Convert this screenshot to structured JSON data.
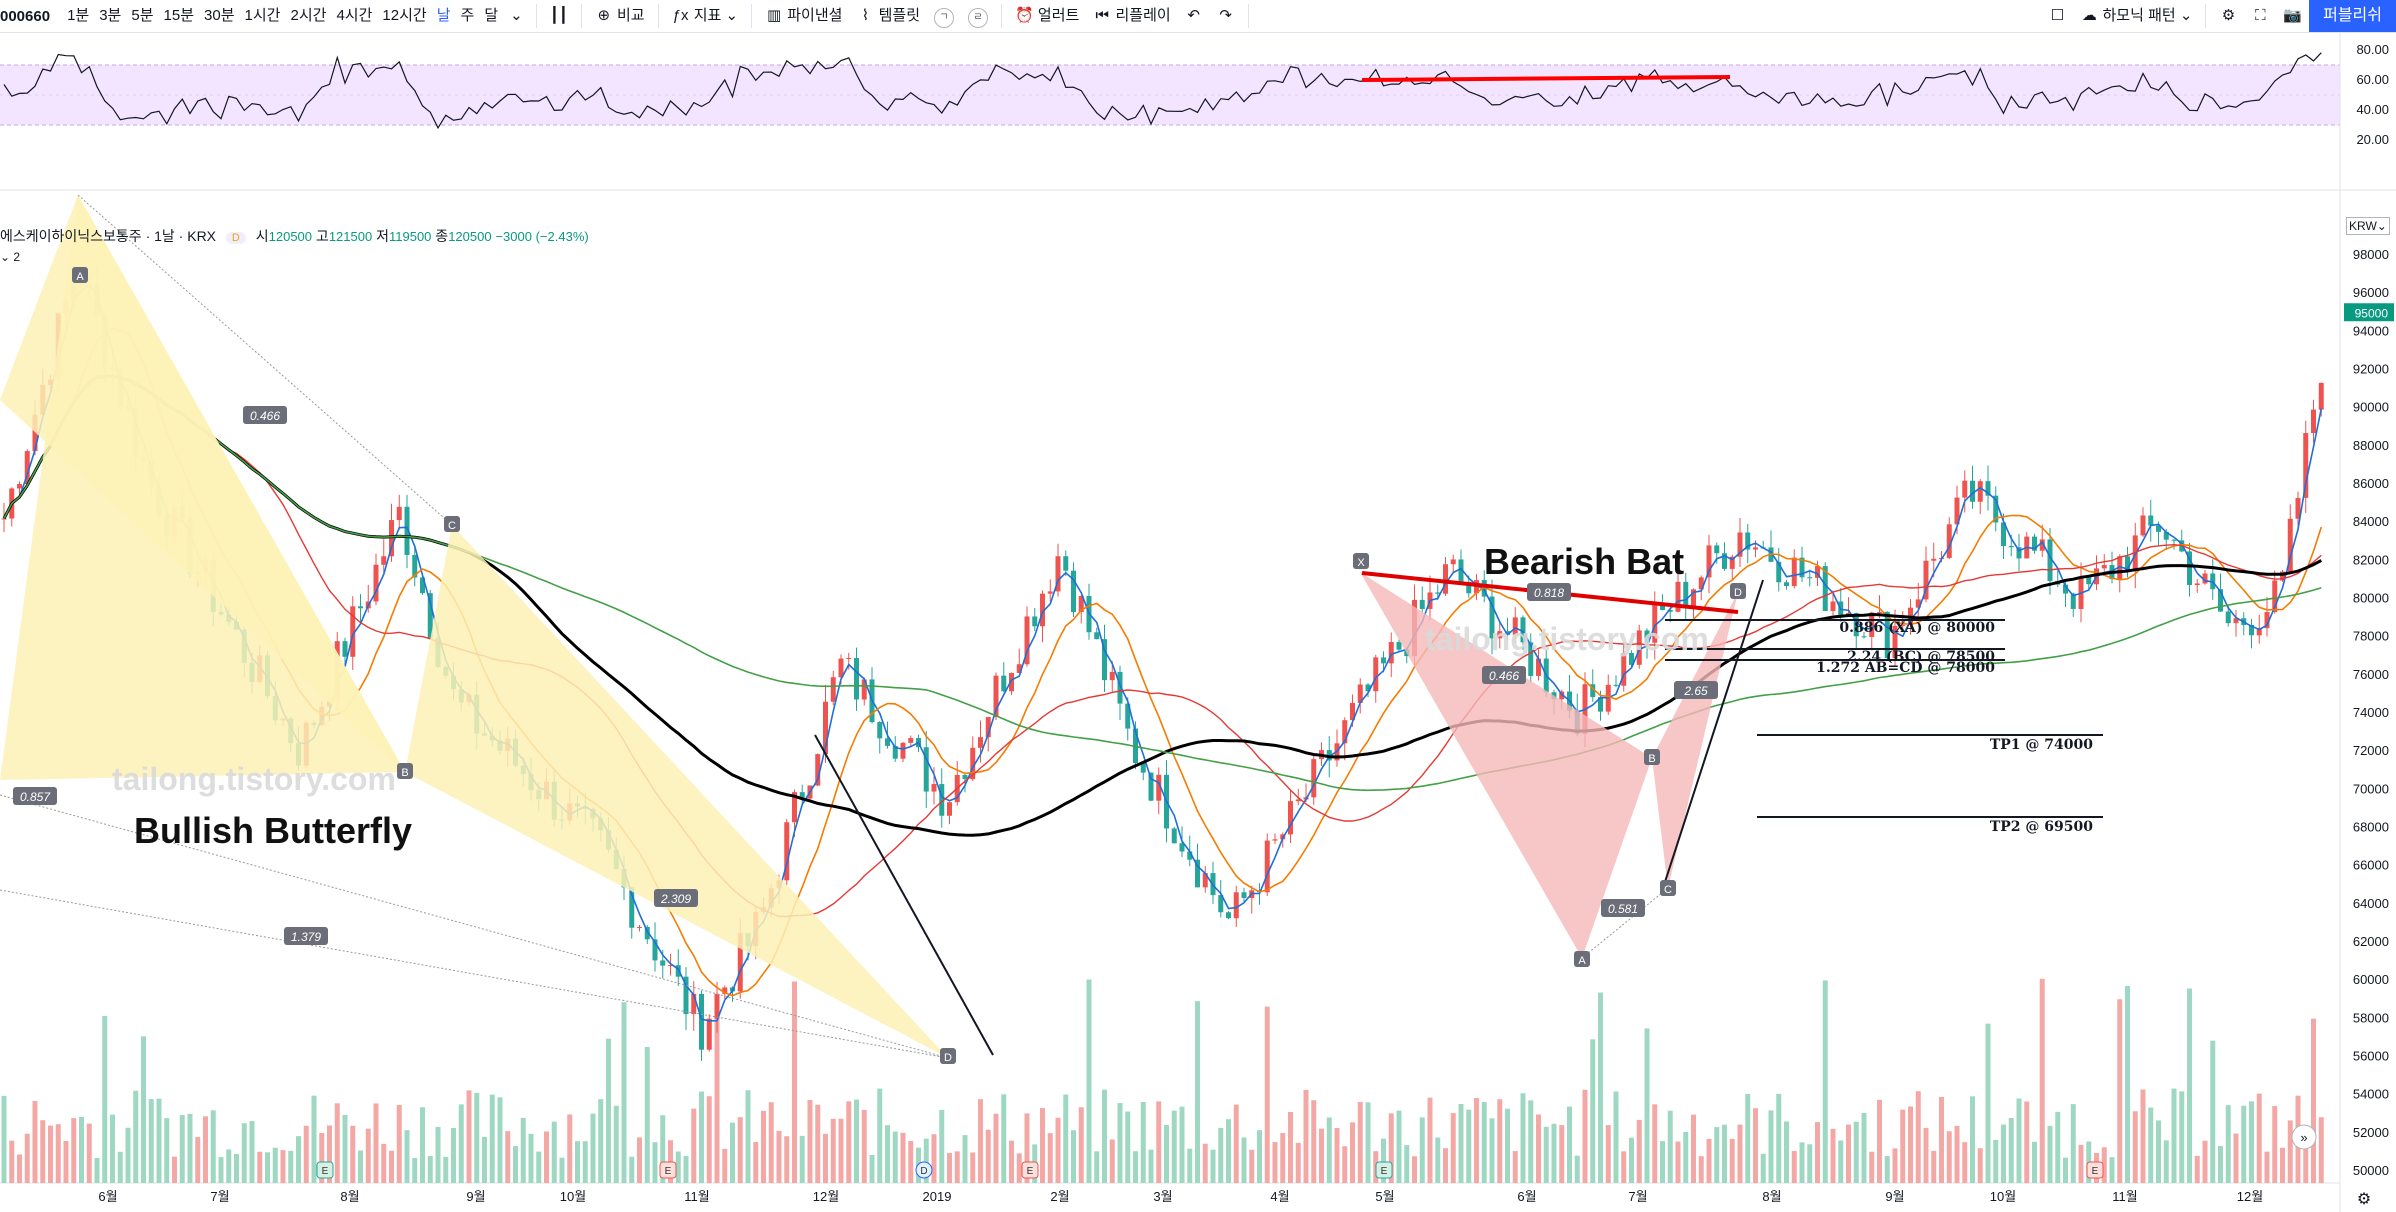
{
  "toolbar": {
    "symbol": "000660",
    "intervals": [
      "1분",
      "3분",
      "5분",
      "15분",
      "30분",
      "1시간",
      "2시간",
      "4시간",
      "12시간",
      "날",
      "주",
      "달"
    ],
    "active_interval": "날",
    "compare": "비교",
    "indicators": "지표",
    "financials": "파이낸셜",
    "templates": "템플릿",
    "alert": "얼러트",
    "replay": "리플레이",
    "harmonic": "하모닉 패턴",
    "publish": "퍼블리쉬"
  },
  "legend": {
    "name": "에스케이하이닉스보통주 · 1날 · KRX",
    "open_label": "시",
    "open": "120500",
    "high_label": "고",
    "high": "121500",
    "low_label": "저",
    "low": "119500",
    "close_label": "종",
    "close": "120500",
    "change": "−3000 (−2.43%)",
    "d_badge": "D",
    "pane_count": "2"
  },
  "currency": "KRW",
  "rsi_axis": [
    "80.00",
    "60.00",
    "40.00",
    "20.00"
  ],
  "price_axis": [
    "98000",
    "96000",
    "94000",
    "92000",
    "90000",
    "88000",
    "86000",
    "84000",
    "82000",
    "80000",
    "78000",
    "76000",
    "74000",
    "72000",
    "70000",
    "68000",
    "66000",
    "64000",
    "62000",
    "60000",
    "58000",
    "56000",
    "54000",
    "52000",
    "50000"
  ],
  "last_price": "95000",
  "time_axis": [
    "6월",
    "7월",
    "8월",
    "9월",
    "10월",
    "11월",
    "12월",
    "2019",
    "2월",
    "3월",
    "4월",
    "5월",
    "6월",
    "7월",
    "8월",
    "9월",
    "10월",
    "11월",
    "12월"
  ],
  "annotations": {
    "watermark": "tailong.tistory.com",
    "butterfly_title": "Bullish Butterfly",
    "bat_title": "Bearish Bat",
    "butterfly_points": [
      "A",
      "B",
      "C",
      "D"
    ],
    "butterfly_ratios": [
      "0.466",
      "0.857",
      "2.309",
      "1.379"
    ],
    "bat_points": [
      "X",
      "A",
      "B",
      "C",
      "D"
    ],
    "bat_ratios": [
      "0.466",
      "0.581",
      "2.65",
      "0.818"
    ],
    "levels": [
      "0.886 (XA) @ 80000",
      "2.24 (BC) @ 78500",
      "1.272 AB=CD @ 78000",
      "TP1 @ 74000",
      "TP2 @ 69500"
    ]
  },
  "colors": {
    "up": "#ef5350",
    "down": "#26a69a",
    "ma5": "#1e6fd9",
    "ma20": "#f57c00",
    "ma60": "#e53935",
    "ma120": "#000000",
    "ma240": "#43a047",
    "rsi_band": "#f3e5ff",
    "accent": "#2962ff"
  }
}
